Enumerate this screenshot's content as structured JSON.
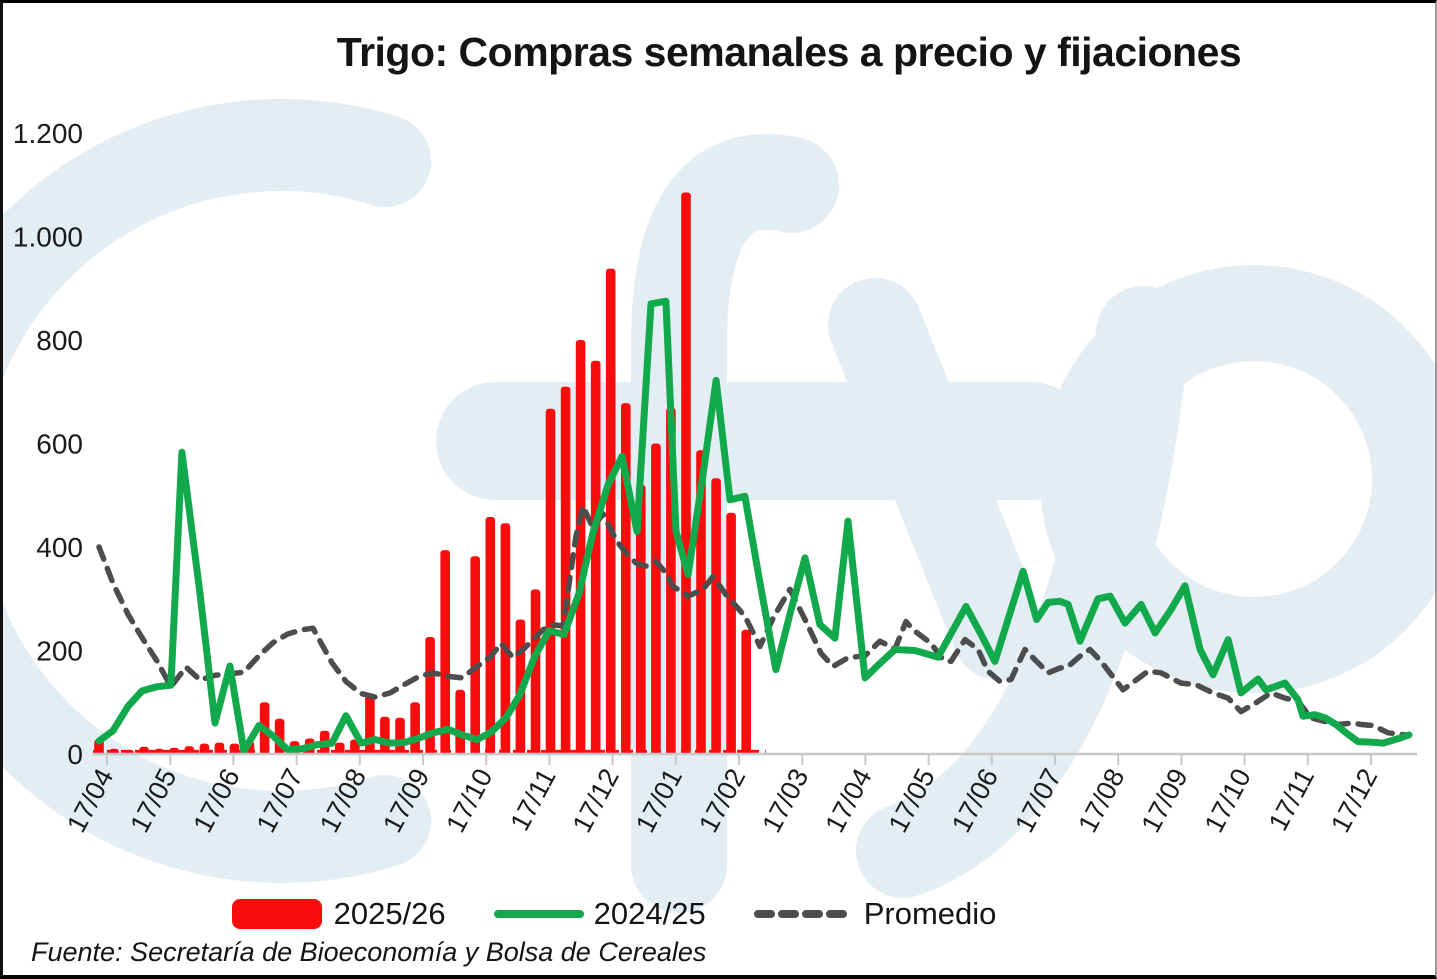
{
  "title": "Trigo: Compras semanales a precio y fijaciones",
  "source_note": "Fuente: Secretaría de Bioeconomía y Bolsa de Cereales",
  "watermark": "fyo",
  "colors": {
    "bars": "#FB0C0C",
    "line_2024_25": "#12A94D",
    "promedio": "#4D4D4D",
    "watermark": "#E3EEF4",
    "axis": "#C8C8C8",
    "text": "#1A1A1A"
  },
  "legend": {
    "items": [
      {
        "label": "2025/26",
        "type": "bar"
      },
      {
        "label": "2024/25",
        "type": "line"
      },
      {
        "label": "Promedio",
        "type": "dashed"
      }
    ]
  },
  "chart_data": {
    "type": "bar+line",
    "title": "Trigo: Compras semanales a precio y fijaciones",
    "ylim": [
      0,
      1200
    ],
    "yticks": [
      0,
      200,
      400,
      600,
      800,
      1000,
      1200
    ],
    "ytick_labels": [
      "0",
      "200",
      "400",
      "600",
      "800",
      "1.000",
      "1.200"
    ],
    "x_unit": "weeks since 17/04 (weekly data, monthly tick labels)",
    "month_tick_labels": [
      "17/04",
      "17/05",
      "17/06",
      "17/07",
      "17/08",
      "17/09",
      "17/10",
      "17/11",
      "17/12",
      "17/01",
      "17/02",
      "17/03",
      "17/04",
      "17/05",
      "17/06",
      "17/07",
      "17/08",
      "17/09",
      "17/10",
      "17/11",
      "17/12"
    ],
    "weeks_per_month": 4.2,
    "grid": false,
    "legend_position": "bottom",
    "series": {
      "bars_2025_26": {
        "name": "2025/26",
        "start_week": 0,
        "values": [
          28,
          10,
          8,
          14,
          10,
          12,
          15,
          20,
          22,
          20,
          24,
          100,
          68,
          25,
          30,
          45,
          22,
          28,
          112,
          72,
          70,
          100,
          226,
          394,
          124,
          382,
          458,
          446,
          260,
          318,
          667,
          710,
          800,
          760,
          938,
          678,
          520,
          600,
          669,
          1085,
          587,
          533,
          466,
          240
        ]
      },
      "zero_line_2025_26": {
        "name": "2025/26 baseline (red dashed)",
        "from_week": -0.4,
        "to_week": 44.3,
        "value": 5
      },
      "line_2024_25": {
        "name": "2024/25",
        "points": [
          [
            0,
            25
          ],
          [
            0.93,
            45
          ],
          [
            1.93,
            92
          ],
          [
            2.86,
            122
          ],
          [
            3.85,
            130
          ],
          [
            4.78,
            133
          ],
          [
            5.51,
            583
          ],
          [
            6.71,
            310
          ],
          [
            7.71,
            60
          ],
          [
            8.7,
            170
          ],
          [
            9.63,
            6
          ],
          [
            10.63,
            55
          ],
          [
            11.56,
            35
          ],
          [
            12.56,
            8
          ],
          [
            13.49,
            10
          ],
          [
            14.49,
            18
          ],
          [
            15.48,
            21
          ],
          [
            16.41,
            74
          ],
          [
            17.41,
            21
          ],
          [
            18.34,
            28
          ],
          [
            19.34,
            21
          ],
          [
            20.27,
            22
          ],
          [
            21.26,
            31
          ],
          [
            22.19,
            41
          ],
          [
            23.19,
            48
          ],
          [
            24.12,
            37
          ],
          [
            25.12,
            28
          ],
          [
            26.05,
            42
          ],
          [
            27.04,
            70
          ],
          [
            27.97,
            115
          ],
          [
            28.97,
            190
          ],
          [
            29.9,
            238
          ],
          [
            30.9,
            231
          ],
          [
            31.89,
            310
          ],
          [
            32.82,
            427
          ],
          [
            33.82,
            520
          ],
          [
            34.75,
            575
          ],
          [
            35.75,
            430
          ],
          [
            36.68,
            870
          ],
          [
            37.67,
            875
          ],
          [
            38.34,
            430
          ],
          [
            39.14,
            347
          ],
          [
            40.13,
            540
          ],
          [
            41.0,
            722
          ],
          [
            41.93,
            491
          ],
          [
            42.92,
            498
          ],
          [
            43.92,
            330
          ],
          [
            44.98,
            163
          ],
          [
            45.91,
            270
          ],
          [
            46.91,
            379
          ],
          [
            47.9,
            250
          ],
          [
            48.9,
            224
          ],
          [
            49.77,
            450
          ],
          [
            50.9,
            147
          ],
          [
            51.89,
            175
          ],
          [
            52.89,
            202
          ],
          [
            54.22,
            200
          ],
          [
            55.75,
            187
          ],
          [
            57.61,
            285
          ],
          [
            58.54,
            235
          ],
          [
            59.53,
            179
          ],
          [
            61.4,
            353
          ],
          [
            62.3,
            260
          ],
          [
            63.06,
            293
          ],
          [
            63.85,
            295
          ],
          [
            64.39,
            289
          ],
          [
            65.18,
            218
          ],
          [
            66.38,
            300
          ],
          [
            67.18,
            305
          ],
          [
            68.17,
            253
          ],
          [
            69.24,
            289
          ],
          [
            70.17,
            234
          ],
          [
            71.16,
            276
          ],
          [
            72.16,
            325
          ],
          [
            73.16,
            202
          ],
          [
            74.02,
            153
          ],
          [
            75.02,
            221
          ],
          [
            75.88,
            118
          ],
          [
            77.01,
            145
          ],
          [
            77.54,
            124
          ],
          [
            78.8,
            137
          ],
          [
            79.67,
            105
          ],
          [
            80.0,
            73
          ],
          [
            80.8,
            76
          ],
          [
            81.46,
            70
          ],
          [
            82.19,
            57
          ],
          [
            82.86,
            41
          ],
          [
            83.65,
            24
          ],
          [
            84.52,
            23
          ],
          [
            85.32,
            21
          ],
          [
            86.45,
            31
          ],
          [
            87.04,
            37
          ]
        ]
      },
      "promedio": {
        "name": "Promedio",
        "points": [
          [
            0,
            400
          ],
          [
            0.93,
            330
          ],
          [
            1.93,
            270
          ],
          [
            2.86,
            225
          ],
          [
            3.85,
            180
          ],
          [
            4.78,
            130
          ],
          [
            5.78,
            168
          ],
          [
            6.71,
            143
          ],
          [
            7.71,
            152
          ],
          [
            8.7,
            155
          ],
          [
            9.63,
            158
          ],
          [
            10.63,
            190
          ],
          [
            11.56,
            215
          ],
          [
            12.56,
            232
          ],
          [
            13.49,
            240
          ],
          [
            14.22,
            243
          ],
          [
            15.48,
            176
          ],
          [
            16.41,
            140
          ],
          [
            17.41,
            117
          ],
          [
            18.34,
            110
          ],
          [
            19.34,
            118
          ],
          [
            20.27,
            134
          ],
          [
            21.26,
            150
          ],
          [
            22.19,
            157
          ],
          [
            23.19,
            150
          ],
          [
            24.12,
            147
          ],
          [
            25.12,
            169
          ],
          [
            26.05,
            189
          ],
          [
            26.71,
            214
          ],
          [
            27.51,
            186
          ],
          [
            28.17,
            202
          ],
          [
            28.84,
            221
          ],
          [
            29.5,
            240
          ],
          [
            30.17,
            250
          ],
          [
            30.83,
            247
          ],
          [
            31.69,
            420
          ],
          [
            32.16,
            479
          ],
          [
            32.82,
            437
          ],
          [
            33.49,
            464
          ],
          [
            34.35,
            414
          ],
          [
            35.02,
            388
          ],
          [
            35.68,
            369
          ],
          [
            36.35,
            363
          ],
          [
            37.01,
            372
          ],
          [
            37.67,
            350
          ],
          [
            38.14,
            324
          ],
          [
            39.14,
            305
          ],
          [
            40.13,
            318
          ],
          [
            40.8,
            343
          ],
          [
            41.66,
            308
          ],
          [
            42.92,
            266
          ],
          [
            43.92,
            208
          ],
          [
            44.85,
            266
          ],
          [
            45.91,
            318
          ],
          [
            46.98,
            256
          ],
          [
            47.97,
            195
          ],
          [
            48.77,
            169
          ],
          [
            49.77,
            186
          ],
          [
            50.9,
            190
          ],
          [
            51.89,
            218
          ],
          [
            52.89,
            203
          ],
          [
            53.62,
            256
          ],
          [
            54.09,
            240
          ],
          [
            55.28,
            214
          ],
          [
            56.08,
            182
          ],
          [
            56.61,
            179
          ],
          [
            57.54,
            221
          ],
          [
            58.41,
            202
          ],
          [
            59.07,
            160
          ],
          [
            59.87,
            140
          ],
          [
            60.6,
            144
          ],
          [
            61.53,
            202
          ],
          [
            62.19,
            182
          ],
          [
            63.06,
            157
          ],
          [
            63.85,
            166
          ],
          [
            64.39,
            169
          ],
          [
            65.18,
            189
          ],
          [
            65.85,
            202
          ],
          [
            66.58,
            179
          ],
          [
            68.04,
            124
          ],
          [
            69.7,
            160
          ],
          [
            70.56,
            157
          ],
          [
            71.89,
            137
          ],
          [
            72.89,
            134
          ],
          [
            74.02,
            118
          ],
          [
            75.02,
            108
          ],
          [
            75.88,
            82
          ],
          [
            76.88,
            99
          ],
          [
            77.87,
            118
          ],
          [
            78.8,
            108
          ],
          [
            79.67,
            102
          ],
          [
            80.53,
            70
          ],
          [
            81.46,
            63
          ],
          [
            82.33,
            57
          ],
          [
            83.32,
            60
          ],
          [
            83.85,
            57
          ],
          [
            84.65,
            55
          ],
          [
            85.65,
            41
          ],
          [
            86.78,
            37
          ]
        ]
      }
    }
  }
}
